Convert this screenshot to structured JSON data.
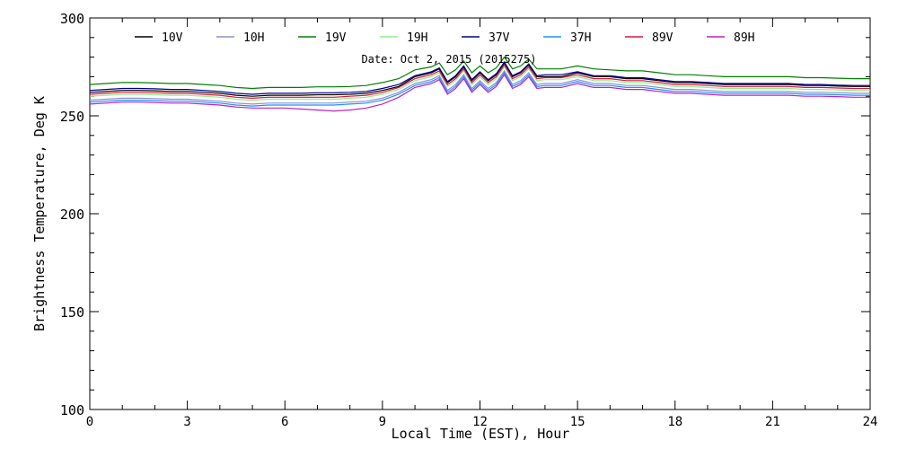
{
  "chart_data": {
    "type": "line",
    "title": "Date: Oct  2, 2015 (2015275)",
    "xlabel": "Local Time (EST), Hour",
    "ylabel": "Brightness Temperature, Deg  K",
    "xlim": [
      0,
      24
    ],
    "ylim": [
      100,
      300
    ],
    "xticks": [
      0,
      3,
      6,
      9,
      12,
      15,
      18,
      21,
      24
    ],
    "yticks": [
      100,
      150,
      200,
      250,
      300
    ],
    "grid": false,
    "legend_position": "top",
    "x": [
      0,
      0.5,
      1,
      1.5,
      2,
      2.5,
      3,
      3.5,
      4,
      4.5,
      5,
      5.5,
      6,
      6.5,
      7,
      7.5,
      8,
      8.5,
      9,
      9.5,
      10,
      10.5,
      10.75,
      11,
      11.25,
      11.5,
      11.75,
      12,
      12.25,
      12.5,
      12.75,
      13,
      13.25,
      13.5,
      13.75,
      14,
      14.5,
      15,
      15.5,
      16,
      16.5,
      17,
      17.5,
      18,
      18.5,
      19,
      19.5,
      20,
      20.5,
      21,
      21.5,
      22,
      22.5,
      23,
      23.5,
      24
    ],
    "series": [
      {
        "name": "10V",
        "color": "#000000",
        "values": [
          262,
          262.5,
          263,
          263,
          262.8,
          262.5,
          262.5,
          262,
          261.5,
          260.5,
          260,
          260.5,
          260.5,
          260.5,
          260.8,
          260.8,
          261,
          261.5,
          263,
          265,
          270,
          272,
          274,
          267,
          270,
          275,
          268,
          272,
          268,
          271,
          277,
          270,
          272,
          276,
          270,
          270,
          270,
          272,
          270,
          270,
          269,
          269,
          268,
          267,
          267,
          266.5,
          266,
          266,
          266,
          266,
          266,
          265.5,
          265.5,
          265.2,
          265,
          265
        ]
      },
      {
        "name": "10H",
        "color": "#8f8fcf",
        "values": [
          258,
          258.5,
          259,
          259,
          258.8,
          258.5,
          258.5,
          258,
          257.5,
          256.5,
          256,
          256.5,
          256.5,
          256.5,
          256.5,
          256.5,
          257,
          257.5,
          259,
          262,
          266.5,
          268.5,
          270.5,
          263,
          266,
          271,
          264,
          268,
          264,
          267,
          273,
          266,
          268,
          272,
          266,
          266.5,
          266.5,
          268.5,
          266.5,
          266.5,
          265.5,
          265.5,
          264.5,
          263.5,
          263.5,
          263,
          262.5,
          262.5,
          262.5,
          262.5,
          262.5,
          262,
          262,
          261.8,
          261.5,
          261.5
        ]
      },
      {
        "name": "19V",
        "color": "#008000",
        "values": [
          266,
          266.5,
          267,
          267,
          266.8,
          266.5,
          266.5,
          266,
          265.5,
          264.5,
          264,
          264.5,
          264.5,
          264.5,
          264.8,
          264.8,
          265,
          265.5,
          267,
          269,
          273.5,
          275,
          277,
          271,
          273.5,
          278,
          272,
          275.5,
          272,
          274.5,
          280,
          274,
          275.5,
          279,
          274,
          274,
          274,
          275.5,
          274,
          273.5,
          273,
          273,
          272,
          271,
          271,
          270.5,
          270,
          270,
          270,
          270,
          270,
          269.5,
          269.5,
          269.2,
          269,
          269
        ]
      },
      {
        "name": "19H",
        "color": "#90ee90",
        "values": [
          260,
          260.5,
          261,
          261,
          260.8,
          260.5,
          260.5,
          260,
          259.5,
          258.5,
          258,
          258.5,
          258.5,
          258.5,
          258.5,
          258.5,
          259,
          259.5,
          261,
          263.5,
          268,
          270,
          272,
          265,
          268,
          273,
          266,
          270,
          266,
          269,
          275,
          268,
          270,
          274,
          268,
          268.5,
          268.5,
          270,
          268,
          268,
          267,
          267,
          266,
          265,
          265,
          264.5,
          264,
          264,
          264,
          264,
          264,
          263.5,
          263.5,
          263.2,
          263,
          263
        ]
      },
      {
        "name": "37V",
        "color": "#00008b",
        "values": [
          263,
          263.5,
          264,
          264,
          263.8,
          263.5,
          263.5,
          263,
          262.5,
          261.5,
          261,
          261.5,
          261.5,
          261.5,
          261.8,
          261.8,
          262,
          262.5,
          264,
          266,
          270.5,
          272.5,
          274.5,
          267.5,
          270.5,
          275.5,
          268.5,
          272.5,
          268.5,
          271.5,
          277.5,
          270.5,
          272.5,
          276.5,
          270.5,
          271,
          271,
          272.5,
          270.5,
          270.5,
          269.5,
          269.5,
          268.5,
          267.5,
          267.5,
          267,
          266.5,
          266.5,
          266.5,
          266.5,
          266.5,
          266,
          266,
          265.7,
          265.5,
          265.5
        ]
      },
      {
        "name": "37H",
        "color": "#1e90ff",
        "values": [
          257,
          257.5,
          258,
          258,
          257.8,
          257.5,
          257.5,
          257,
          256.5,
          255.5,
          255,
          255.5,
          255.5,
          255.5,
          255.5,
          255.5,
          256,
          256.5,
          258,
          261,
          265.5,
          267.5,
          269.5,
          262,
          265,
          270,
          263,
          267,
          263,
          266,
          272,
          265,
          267,
          271,
          265,
          265.5,
          265.5,
          267.5,
          265.5,
          265.5,
          264.5,
          264.5,
          263.5,
          262.5,
          262.5,
          262,
          261.5,
          261.5,
          261.5,
          261.5,
          261.5,
          261,
          261,
          260.8,
          260.5,
          260.5
        ]
      },
      {
        "name": "89V",
        "color": "#dc143c",
        "values": [
          261,
          261.5,
          262,
          262,
          261.8,
          261.5,
          261.5,
          261,
          260.5,
          259.5,
          259,
          259.5,
          259.5,
          259.5,
          259.5,
          259.5,
          260,
          260.5,
          262,
          264.5,
          269,
          271,
          273,
          266,
          269,
          274,
          267,
          271,
          267,
          270,
          276,
          269,
          271,
          275,
          269,
          269.5,
          269.5,
          271,
          269,
          269,
          268,
          268,
          267,
          266,
          266,
          265.5,
          265,
          265,
          265,
          265,
          265,
          264.5,
          264.5,
          264.2,
          264,
          264
        ]
      },
      {
        "name": "89H",
        "color": "#c020c0",
        "values": [
          256,
          256.5,
          257,
          257,
          256.8,
          256.5,
          256.5,
          256,
          255.5,
          254.5,
          254,
          254,
          254,
          253.5,
          253,
          252.5,
          253,
          254,
          256,
          259.5,
          264.5,
          266.5,
          268.5,
          261,
          264,
          269,
          262,
          266,
          262,
          265,
          271,
          264,
          266,
          270,
          264,
          264.5,
          264.5,
          266.5,
          264.5,
          264.5,
          263.5,
          263.5,
          262.5,
          261.5,
          261.5,
          261,
          260.5,
          260.5,
          260.5,
          260.5,
          260.5,
          260,
          260,
          259.8,
          259.5,
          259.5
        ]
      }
    ]
  }
}
